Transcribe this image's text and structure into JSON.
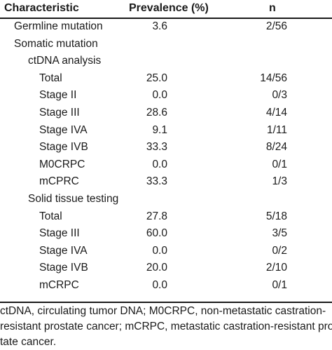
{
  "headers": {
    "characteristic": "Characteristic",
    "prevalence": "Prevalence (%)",
    "n": "n"
  },
  "rows": [
    {
      "label": "Germline mutation",
      "prevalence": "3.6",
      "n": "2/56",
      "indent": 0
    },
    {
      "label": "Somatic mutation",
      "prevalence": "",
      "n": "",
      "indent": 0
    },
    {
      "label": "ctDNA analysis",
      "prevalence": "",
      "n": "",
      "indent": 1
    },
    {
      "label": "Total",
      "prevalence": "25.0",
      "n": "14/56",
      "indent": 2
    },
    {
      "label": "Stage II",
      "prevalence": "0.0",
      "n": "0/3",
      "indent": 2
    },
    {
      "label": "Stage III",
      "prevalence": "28.6",
      "n": "4/14",
      "indent": 2
    },
    {
      "label": "Stage IVA",
      "prevalence": "9.1",
      "n": "1/11",
      "indent": 2
    },
    {
      "label": "Stage IVB",
      "prevalence": "33.3",
      "n": "8/24",
      "indent": 2
    },
    {
      "label": "M0CRPC",
      "prevalence": "0.0",
      "n": "0/1",
      "indent": 2
    },
    {
      "label": "mCPRC",
      "prevalence": "33.3",
      "n": "1/3",
      "indent": 2
    },
    {
      "label": "Solid tissue testing",
      "prevalence": "",
      "n": "",
      "indent": 1
    },
    {
      "label": "Total",
      "prevalence": "27.8",
      "n": "5/18",
      "indent": 2
    },
    {
      "label": "Stage III",
      "prevalence": "60.0",
      "n": "3/5",
      "indent": 2
    },
    {
      "label": "Stage IVA",
      "prevalence": "0.0",
      "n": "0/2",
      "indent": 2
    },
    {
      "label": "Stage IVB",
      "prevalence": "20.0",
      "n": "2/10",
      "indent": 2
    },
    {
      "label": "mCRPC",
      "prevalence": "0.0",
      "n": "0/1",
      "indent": 2
    }
  ],
  "footnote": {
    "line1": "ctDNA, circulating tumor DNA; M0CRPC, non-metastatic castration-",
    "line2": "resistant prostate cancer; mCRPC, metastatic castration-resistant pros-",
    "line3": "tate cancer."
  }
}
